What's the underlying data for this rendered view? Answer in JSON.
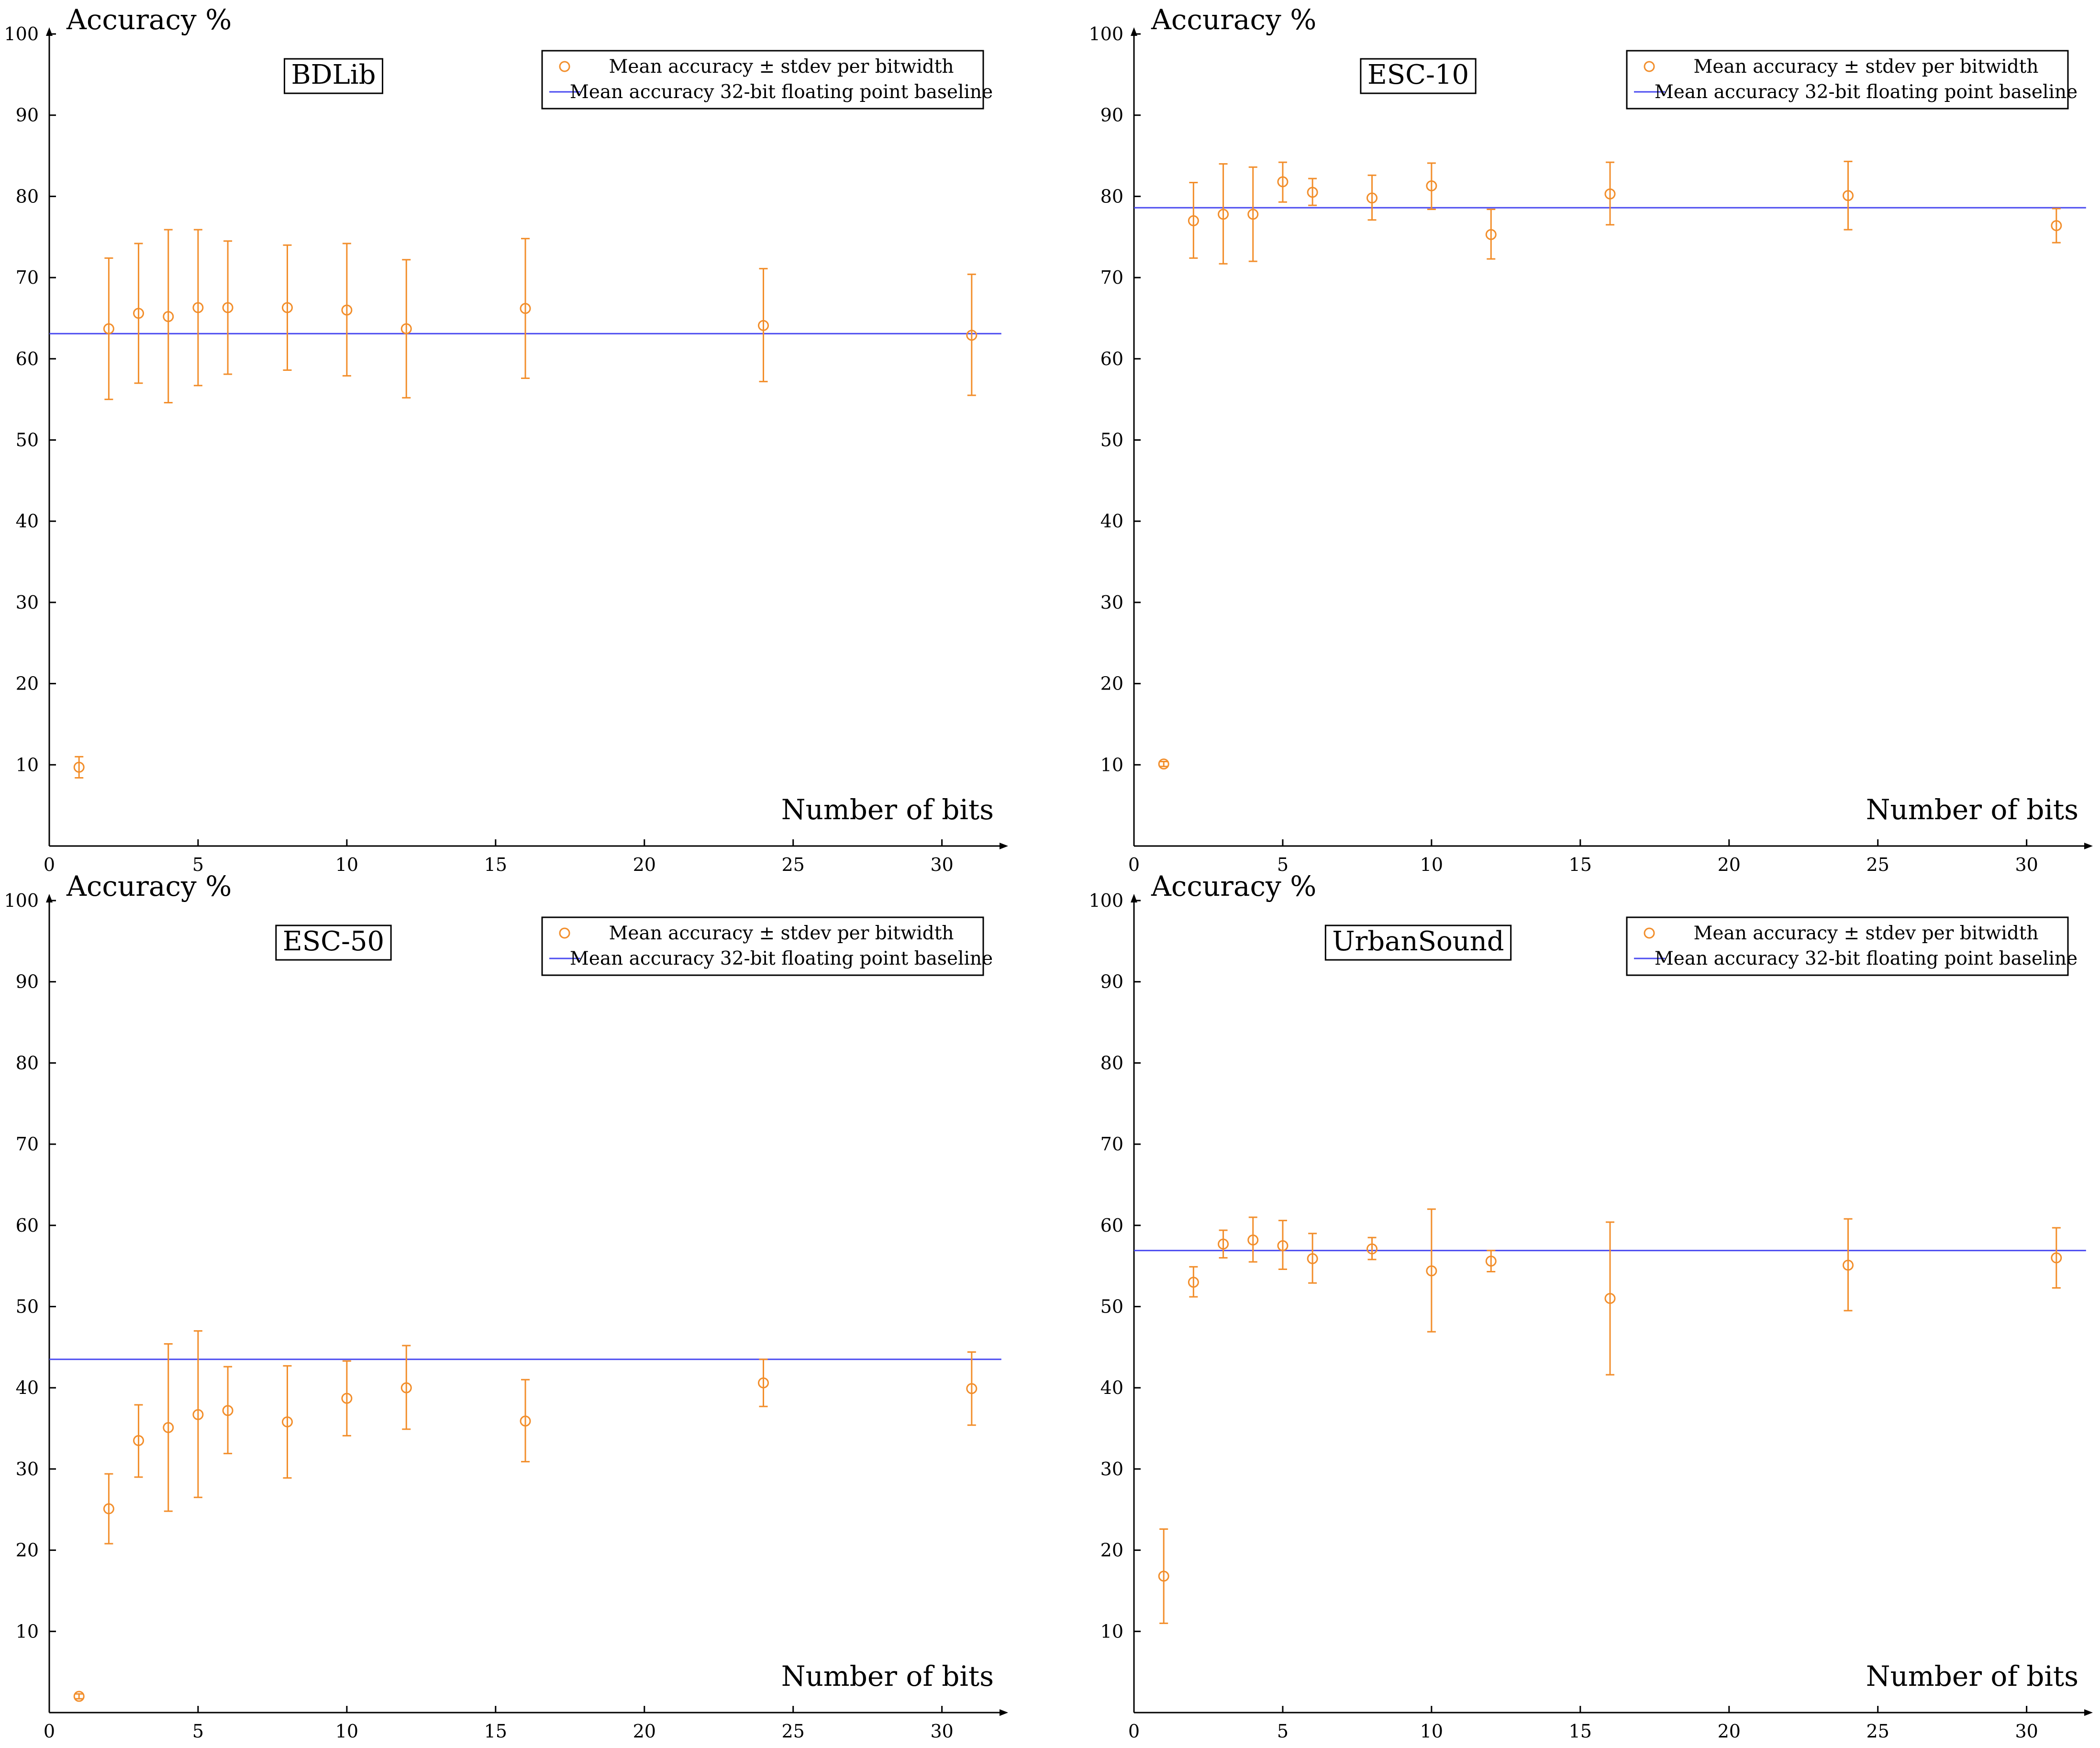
{
  "colors": {
    "marker": "#f28e2b",
    "baseline": "#4b4bf0",
    "axis": "#000000",
    "background": "#ffffff"
  },
  "chart_data": [
    {
      "type": "scatter",
      "title": "BDLib",
      "xlabel": "Number of bits",
      "ylabel": "Accuracy %",
      "xlim": [
        0,
        32
      ],
      "ylim": [
        0,
        100
      ],
      "xticks": [
        0,
        5,
        10,
        15,
        20,
        25,
        30
      ],
      "yticks": [
        10,
        20,
        30,
        40,
        50,
        60,
        70,
        80,
        90,
        100
      ],
      "legend": {
        "position": "top-right",
        "entries": [
          "Mean accuracy ± stdev per bitwidth",
          "Mean accuracy 32-bit floating point baseline"
        ]
      },
      "baseline": 63.1,
      "series": [
        {
          "name": "Mean accuracy ± stdev per bitwidth",
          "x": [
            1,
            2,
            3,
            4,
            5,
            6,
            8,
            10,
            12,
            16,
            24,
            31
          ],
          "mean": [
            9.7,
            63.7,
            65.6,
            65.2,
            66.3,
            66.3,
            66.3,
            66.0,
            63.7,
            66.2,
            64.1,
            62.9
          ],
          "lower": [
            8.4,
            55.0,
            57.0,
            54.6,
            56.7,
            58.1,
            58.6,
            57.9,
            55.2,
            57.6,
            57.2,
            55.5
          ],
          "upper": [
            11.0,
            72.4,
            74.2,
            75.9,
            75.9,
            74.5,
            74.0,
            74.2,
            72.2,
            74.8,
            71.1,
            70.4
          ]
        }
      ]
    },
    {
      "type": "scatter",
      "title": "ESC-10",
      "xlabel": "Number of bits",
      "ylabel": "Accuracy %",
      "xlim": [
        0,
        32
      ],
      "ylim": [
        0,
        100
      ],
      "xticks": [
        0,
        5,
        10,
        15,
        20,
        25,
        30
      ],
      "yticks": [
        10,
        20,
        30,
        40,
        50,
        60,
        70,
        80,
        90,
        100
      ],
      "legend": {
        "position": "top-right",
        "entries": [
          "Mean accuracy ± stdev per bitwidth",
          "Mean accuracy 32-bit floating point baseline"
        ]
      },
      "baseline": 78.6,
      "series": [
        {
          "name": "Mean accuracy ± stdev per bitwidth",
          "x": [
            1,
            2,
            3,
            4,
            5,
            6,
            8,
            10,
            12,
            16,
            24,
            31
          ],
          "mean": [
            10.1,
            77.0,
            77.8,
            77.8,
            81.8,
            80.5,
            79.8,
            81.3,
            75.3,
            80.3,
            80.1,
            76.4
          ],
          "lower": [
            9.8,
            72.4,
            71.7,
            72.0,
            79.3,
            78.9,
            77.1,
            78.4,
            72.3,
            76.5,
            75.9,
            74.3
          ],
          "upper": [
            10.4,
            81.7,
            84.0,
            83.6,
            84.2,
            82.2,
            82.6,
            84.1,
            78.4,
            84.2,
            84.3,
            78.5
          ]
        }
      ]
    },
    {
      "type": "scatter",
      "title": "ESC-50",
      "xlabel": "Number of bits",
      "ylabel": "Accuracy %",
      "xlim": [
        0,
        32
      ],
      "ylim": [
        0,
        100
      ],
      "xticks": [
        0,
        5,
        10,
        15,
        20,
        25,
        30
      ],
      "yticks": [
        10,
        20,
        30,
        40,
        50,
        60,
        70,
        80,
        90,
        100
      ],
      "legend": {
        "position": "top-right",
        "entries": [
          "Mean accuracy ± stdev per bitwidth",
          "Mean accuracy 32-bit floating point baseline"
        ]
      },
      "baseline": 43.5,
      "series": [
        {
          "name": "Mean accuracy ± stdev per bitwidth",
          "x": [
            1,
            2,
            3,
            4,
            5,
            6,
            8,
            10,
            12,
            16,
            24,
            31
          ],
          "mean": [
            2.0,
            25.1,
            33.5,
            35.1,
            36.7,
            37.2,
            35.8,
            38.7,
            40.0,
            35.9,
            40.6,
            39.9
          ],
          "lower": [
            1.7,
            20.8,
            29.0,
            24.8,
            26.5,
            31.9,
            28.9,
            34.1,
            34.9,
            30.9,
            37.7,
            35.4
          ],
          "upper": [
            2.3,
            29.4,
            37.9,
            45.4,
            47.0,
            42.6,
            42.7,
            43.3,
            45.2,
            41.0,
            43.5,
            44.4
          ]
        }
      ]
    },
    {
      "type": "scatter",
      "title": "UrbanSound",
      "xlabel": "Number of bits",
      "ylabel": "Accuracy %",
      "xlim": [
        0,
        32
      ],
      "ylim": [
        0,
        100
      ],
      "xticks": [
        0,
        5,
        10,
        15,
        20,
        25,
        30
      ],
      "yticks": [
        10,
        20,
        30,
        40,
        50,
        60,
        70,
        80,
        90,
        100
      ],
      "legend": {
        "position": "top-right",
        "entries": [
          "Mean accuracy ± stdev per bitwidth",
          "Mean accuracy 32-bit floating point baseline"
        ]
      },
      "baseline": 56.9,
      "series": [
        {
          "name": "Mean accuracy ± stdev per bitwidth",
          "x": [
            1,
            2,
            3,
            4,
            5,
            6,
            8,
            10,
            12,
            16,
            24,
            31
          ],
          "mean": [
            16.8,
            53.0,
            57.7,
            58.2,
            57.5,
            55.9,
            57.1,
            54.4,
            55.6,
            51.0,
            55.1,
            56.0
          ],
          "lower": [
            11.0,
            51.2,
            56.0,
            55.5,
            54.6,
            52.9,
            55.8,
            46.9,
            54.3,
            41.6,
            49.5,
            52.3
          ],
          "upper": [
            22.6,
            54.9,
            59.4,
            61.0,
            60.6,
            59.0,
            58.5,
            62.0,
            56.9,
            60.4,
            60.8,
            59.7
          ]
        }
      ]
    }
  ]
}
